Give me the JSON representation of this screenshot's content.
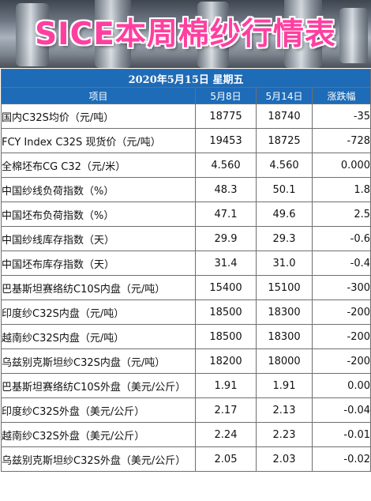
{
  "banner": {
    "title": "SICE本周棉纱行情表"
  },
  "date_line": "2020年5月15日 星期五",
  "columns": [
    "项目",
    "5月8日",
    "5月14日",
    "涨跌幅"
  ],
  "rows": [
    {
      "name": "国内C32S均价（元/吨）",
      "v1": "18775",
      "v2": "18740",
      "chg": "-35",
      "dir": "down"
    },
    {
      "name": "FCY Index C32S 现货价（元/吨）",
      "v1": "19453",
      "v2": "18725",
      "chg": "-728",
      "dir": "down"
    },
    {
      "name": "全棉坯布CG C32（元/米）",
      "v1": "4.560",
      "v2": "4.560",
      "chg": "0.000",
      "dir": "flat"
    },
    {
      "name": "中国纱线负荷指数（%）",
      "v1": "48.3",
      "v2": "50.1",
      "chg": "1.8",
      "dir": "up"
    },
    {
      "name": "中国坯布负荷指数（%）",
      "v1": "47.1",
      "v2": "49.6",
      "chg": "2.5",
      "dir": "up"
    },
    {
      "name": "中国纱线库存指数（天）",
      "v1": "29.9",
      "v2": "29.3",
      "chg": "-0.6",
      "dir": "down"
    },
    {
      "name": "中国坯布库存指数（天）",
      "v1": "31.4",
      "v2": "31.0",
      "chg": "-0.4",
      "dir": "down"
    },
    {
      "name": "巴基斯坦赛络纺C10S内盘（元/吨）",
      "v1": "15400",
      "v2": "15100",
      "chg": "-300",
      "dir": "down"
    },
    {
      "name": "印度纱C32S内盘（元/吨）",
      "v1": "18500",
      "v2": "18300",
      "chg": "-200",
      "dir": "down"
    },
    {
      "name": "越南纱C32S内盘（元/吨）",
      "v1": "18500",
      "v2": "18300",
      "chg": "-200",
      "dir": "down"
    },
    {
      "name": "乌兹别克斯坦纱C32S内盘（元/吨）",
      "v1": "18200",
      "v2": "18000",
      "chg": "-200",
      "dir": "down"
    },
    {
      "name": "巴基斯坦赛络纺C10S外盘（美元/公斤）",
      "v1": "1.91",
      "v2": "1.91",
      "chg": "0.00",
      "dir": "flat"
    },
    {
      "name": "印度纱C32S外盘（美元/公斤）",
      "v1": "2.17",
      "v2": "2.13",
      "chg": "-0.04",
      "dir": "down"
    },
    {
      "name": "越南纱C32S外盘（美元/公斤）",
      "v1": "2.24",
      "v2": "2.23",
      "chg": "-0.01",
      "dir": "down"
    },
    {
      "name": "乌兹别克斯坦纱C32S外盘（美元/公斤）",
      "v1": "2.05",
      "v2": "2.03",
      "chg": "-0.02",
      "dir": "down"
    }
  ]
}
